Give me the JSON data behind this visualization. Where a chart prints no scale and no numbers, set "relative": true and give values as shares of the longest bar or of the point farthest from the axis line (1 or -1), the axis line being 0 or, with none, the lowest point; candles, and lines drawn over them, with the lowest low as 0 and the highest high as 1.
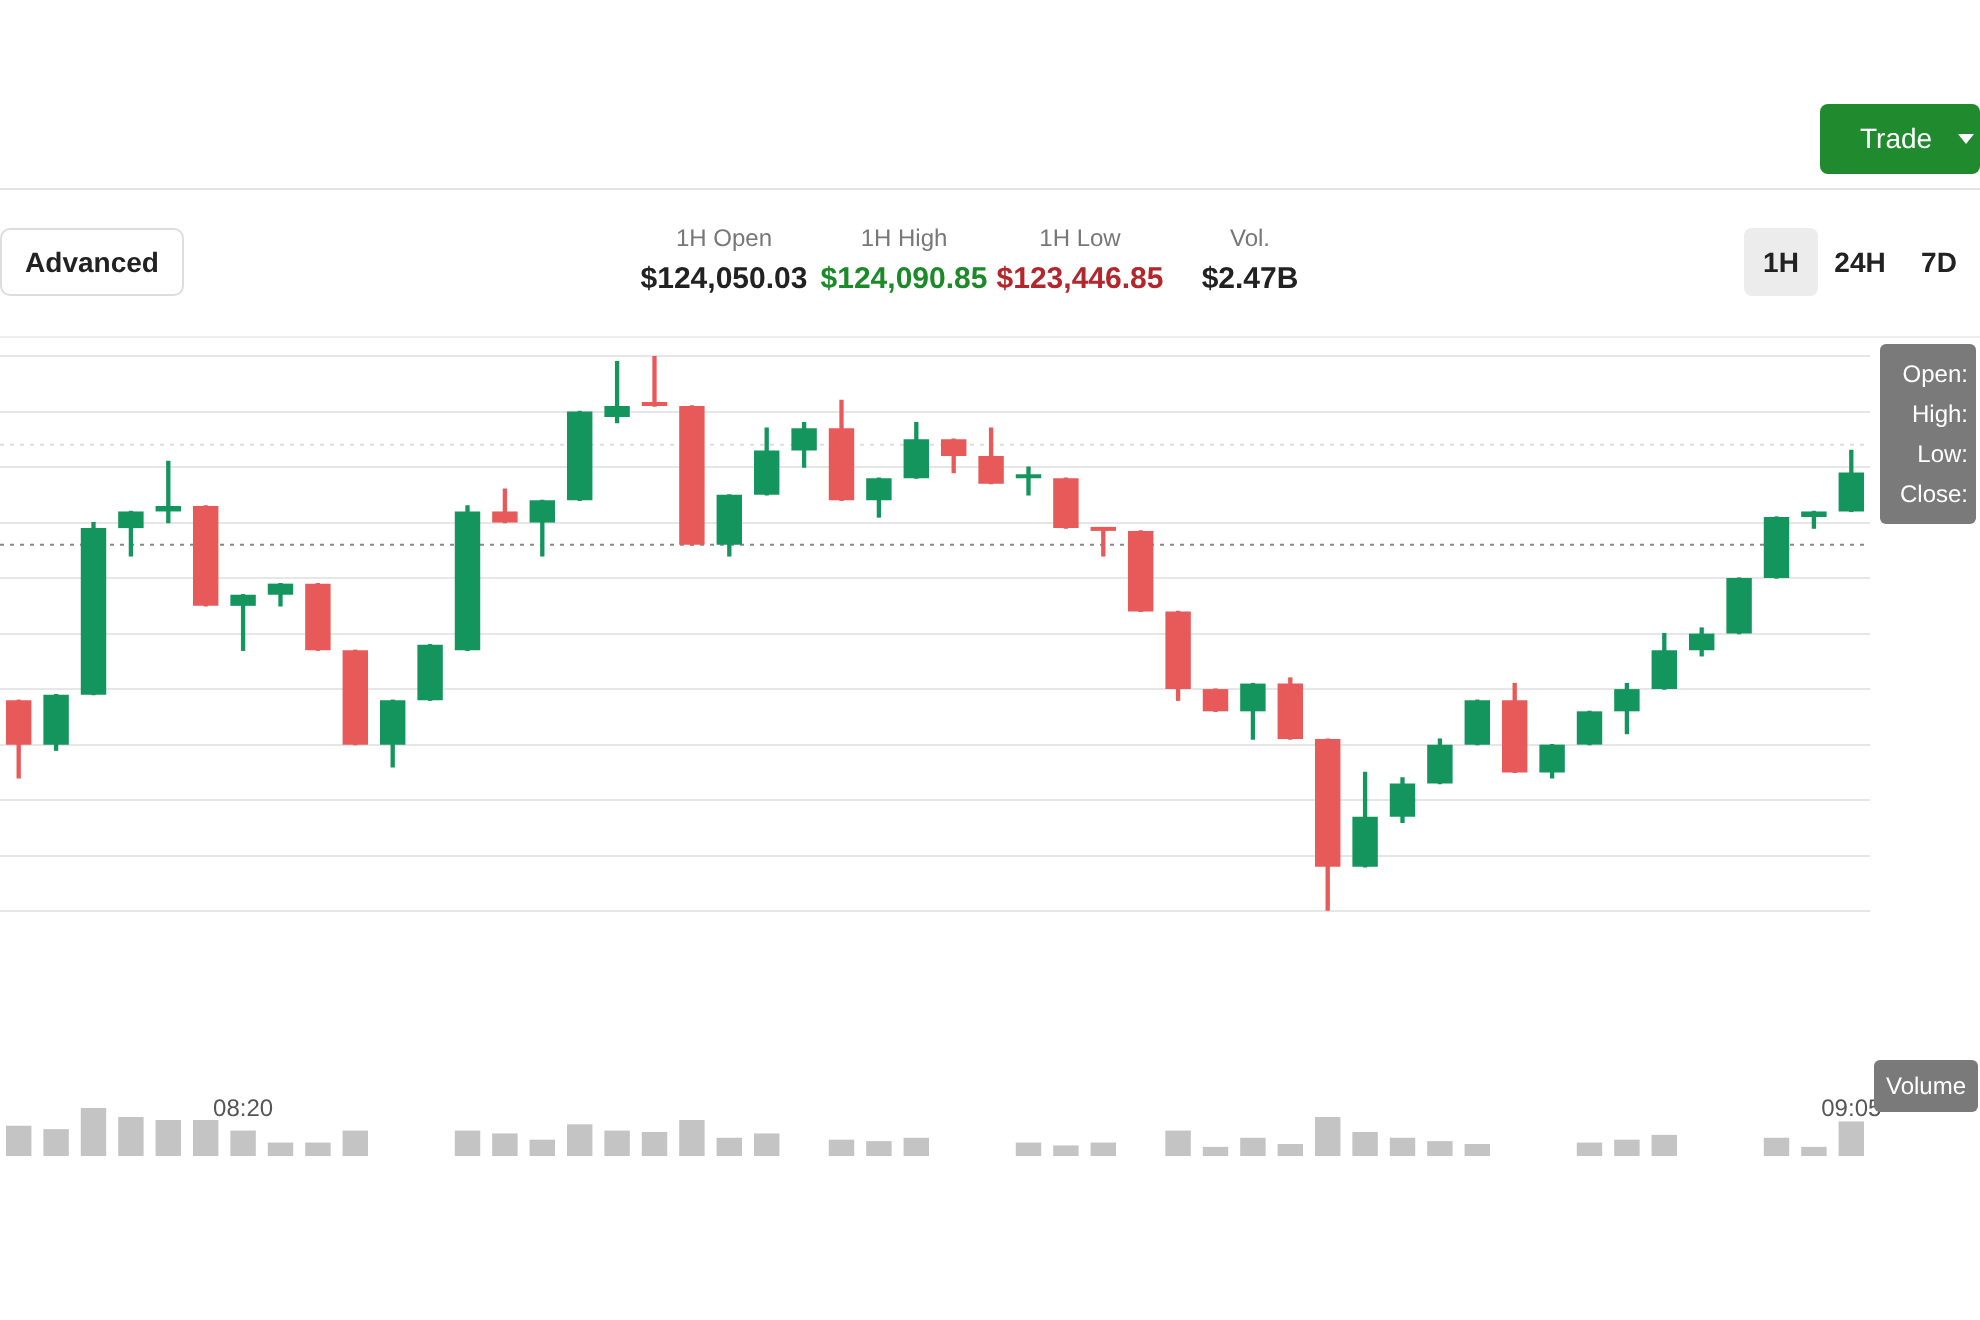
{
  "chart_data": [
    {
      "type": "candlestick",
      "relative": true,
      "grid": "y",
      "categories": [
        null,
        null,
        null,
        null,
        null,
        null,
        "08:20",
        null,
        null,
        null,
        null,
        null,
        null,
        null,
        null,
        null,
        null,
        null,
        null,
        null,
        null,
        null,
        null,
        null,
        null,
        null,
        null,
        null,
        null,
        null,
        null,
        null,
        null,
        null,
        null,
        null,
        null,
        null,
        null,
        null,
        null,
        null,
        null,
        null,
        null,
        null,
        null,
        null,
        null,
        "09:05"
      ],
      "ohlc": [
        [
          0.38,
          0.38,
          0.24,
          0.3
        ],
        [
          0.3,
          0.39,
          0.29,
          0.39
        ],
        [
          0.39,
          0.7,
          0.39,
          0.69
        ],
        [
          0.69,
          0.72,
          0.64,
          0.72
        ],
        [
          0.72,
          0.81,
          0.7,
          0.73
        ],
        [
          0.73,
          0.73,
          0.55,
          0.55
        ],
        [
          0.55,
          0.57,
          0.47,
          0.57
        ],
        [
          0.57,
          0.59,
          0.55,
          0.59
        ],
        [
          0.59,
          0.59,
          0.47,
          0.47
        ],
        [
          0.47,
          0.47,
          0.3,
          0.3
        ],
        [
          0.3,
          0.38,
          0.26,
          0.38
        ],
        [
          0.38,
          0.48,
          0.38,
          0.48
        ],
        [
          0.47,
          0.73,
          0.47,
          0.72
        ],
        [
          0.72,
          0.76,
          0.7,
          0.7
        ],
        [
          0.7,
          0.74,
          0.64,
          0.74
        ],
        [
          0.74,
          0.9,
          0.74,
          0.9
        ],
        [
          0.89,
          0.99,
          0.88,
          0.91
        ],
        [
          0.915,
          1.0,
          0.91,
          0.91
        ],
        [
          0.91,
          0.91,
          0.66,
          0.66
        ],
        [
          0.66,
          0.75,
          0.64,
          0.75
        ],
        [
          0.75,
          0.87,
          0.75,
          0.83
        ],
        [
          0.83,
          0.88,
          0.8,
          0.87
        ],
        [
          0.87,
          0.92,
          0.74,
          0.74
        ],
        [
          0.74,
          0.78,
          0.71,
          0.78
        ],
        [
          0.78,
          0.88,
          0.78,
          0.85
        ],
        [
          0.85,
          0.85,
          0.79,
          0.82
        ],
        [
          0.82,
          0.87,
          0.77,
          0.77
        ],
        [
          0.78,
          0.8,
          0.75,
          0.785
        ],
        [
          0.78,
          0.78,
          0.69,
          0.69
        ],
        [
          0.69,
          0.69,
          0.64,
          0.685
        ],
        [
          0.685,
          0.685,
          0.54,
          0.54
        ],
        [
          0.54,
          0.54,
          0.38,
          0.4
        ],
        [
          0.4,
          0.4,
          0.36,
          0.36
        ],
        [
          0.36,
          0.41,
          0.31,
          0.41
        ],
        [
          0.41,
          0.42,
          0.31,
          0.31
        ],
        [
          0.31,
          0.31,
          0.0,
          0.08
        ],
        [
          0.08,
          0.25,
          0.08,
          0.17
        ],
        [
          0.17,
          0.24,
          0.16,
          0.23
        ],
        [
          0.23,
          0.31,
          0.23,
          0.3
        ],
        [
          0.3,
          0.38,
          0.3,
          0.38
        ],
        [
          0.38,
          0.41,
          0.25,
          0.25
        ],
        [
          0.25,
          0.3,
          0.24,
          0.3
        ],
        [
          0.3,
          0.36,
          0.3,
          0.36
        ],
        [
          0.36,
          0.41,
          0.32,
          0.4
        ],
        [
          0.4,
          0.5,
          0.4,
          0.47
        ],
        [
          0.47,
          0.51,
          0.46,
          0.5
        ],
        [
          0.5,
          0.6,
          0.5,
          0.6
        ],
        [
          0.6,
          0.71,
          0.6,
          0.71
        ],
        [
          0.71,
          0.72,
          0.69,
          0.72
        ],
        [
          0.72,
          0.83,
          0.72,
          0.79
        ]
      ],
      "colors": [
        "#e85a5a",
        "#15955e",
        "#15955e",
        "#15955e",
        "#15955e",
        "#e85a5a",
        "#15955e",
        "#15955e",
        "#e85a5a",
        "#e85a5a",
        "#15955e",
        "#15955e",
        "#15955e",
        "#e85a5a",
        "#15955e",
        "#15955e",
        "#15955e",
        "#e85a5a",
        "#e85a5a",
        "#15955e",
        "#15955e",
        "#15955e",
        "#e85a5a",
        "#15955e",
        "#15955e",
        "#e85a5a",
        "#e85a5a",
        "#15955e",
        "#e85a5a",
        "#e85a5a",
        "#e85a5a",
        "#e85a5a",
        "#e85a5a",
        "#15955e",
        "#e85a5a",
        "#e85a5a",
        "#15955e",
        "#15955e",
        "#15955e",
        "#15955e",
        "#e85a5a",
        "#15955e",
        "#15955e",
        "#15955e",
        "#15955e",
        "#15955e",
        "#15955e",
        "#15955e",
        "#15955e",
        "#15955e"
      ],
      "ref_lines": [
        {
          "axis": "y",
          "value": 0.66,
          "color": "#888888",
          "line_style": "dotted"
        },
        {
          "axis": "y",
          "value": 0.84,
          "color": "#dddddd",
          "line_style": "dotted"
        }
      ],
      "annotations": [
        "Trade",
        "Advanced",
        "1H Open",
        "$124,050.03",
        "1H High",
        "$124,090.85",
        "1H Low",
        "$123,446.85",
        "Vol.",
        "$2.47B",
        "1H",
        "24H",
        "7D",
        "Open:",
        "High:",
        "Low:",
        "Close:",
        "Volume"
      ]
    },
    {
      "type": "bar",
      "relative": true,
      "tick_labels": false,
      "color": "#c4c4c4",
      "categories": [
        null,
        null,
        null,
        null,
        null,
        null,
        null,
        null,
        null,
        null,
        null,
        null,
        null,
        null,
        null,
        null,
        null,
        null,
        null,
        null,
        null,
        null,
        null,
        null,
        null,
        null,
        null,
        null,
        null,
        null,
        null,
        null,
        null,
        null,
        null,
        null,
        null,
        null,
        null,
        null,
        null,
        null,
        null,
        null,
        null,
        null,
        null,
        null,
        null,
        null
      ],
      "values": [
        0.63,
        0.56,
        1,
        0.81,
        0.75,
        0.75,
        0.53,
        0.28,
        0.28,
        0.53,
        null,
        null,
        0.53,
        0.47,
        0.34,
        0.66,
        0.53,
        0.5,
        0.75,
        0.38,
        0.47,
        null,
        0.34,
        0.31,
        0.38,
        null,
        null,
        0.28,
        0.22,
        0.28,
        null,
        0.53,
        0.19,
        0.38,
        0.25,
        0.81,
        0.5,
        0.38,
        0.31,
        0.25,
        null,
        null,
        0.28,
        0.34,
        0.44,
        null,
        null,
        0.38,
        0.19,
        0.72
      ]
    }
  ]
}
